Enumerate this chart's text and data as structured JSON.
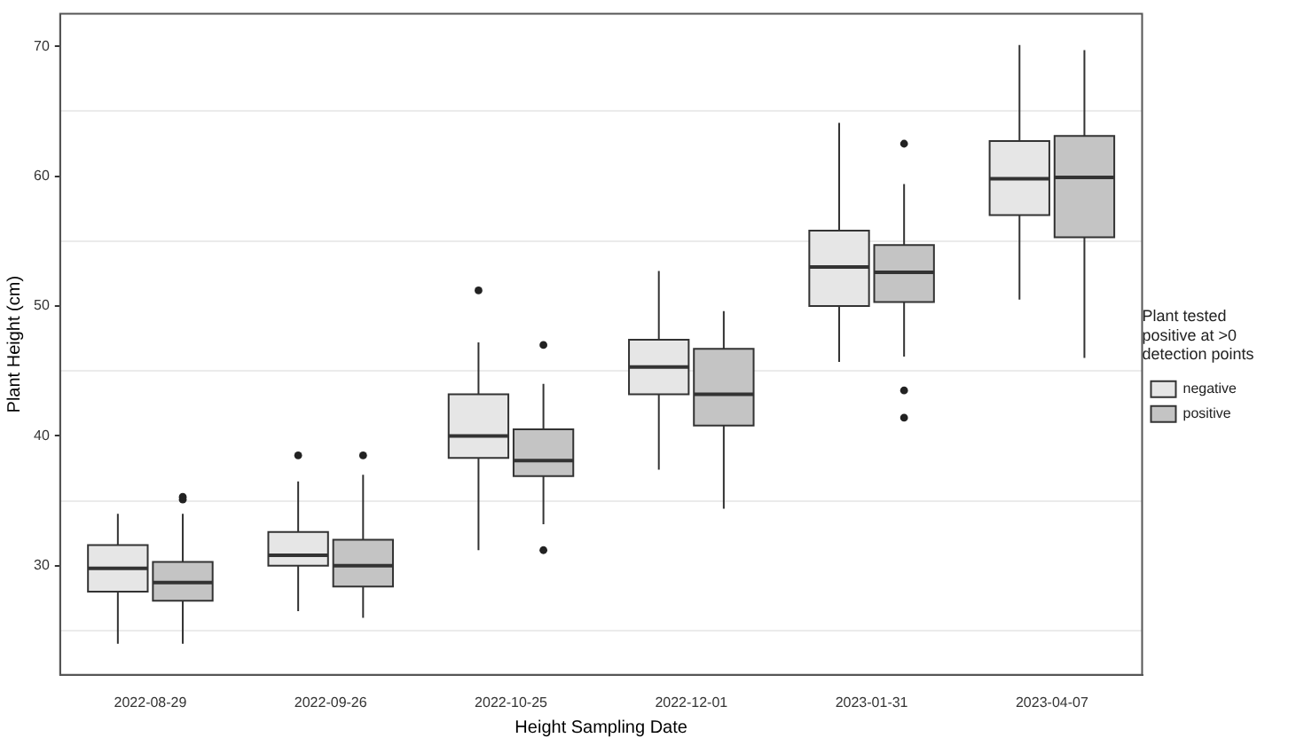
{
  "chart_data": {
    "type": "box",
    "xlabel": "Height Sampling Date",
    "ylabel": "Plant Height (cm)",
    "legend_title": "Plant tested positive at >0 detection points",
    "legend": "right",
    "grid": "y",
    "categories": [
      "2022-08-29",
      "2022-09-26",
      "2022-10-25",
      "2022-12-01",
      "2023-01-31",
      "2023-04-07"
    ],
    "ylim": [
      21.6,
      72.5
    ],
    "yticks": [
      {
        "value": 25,
        "label": null
      },
      30,
      {
        "value": 35,
        "label": null
      },
      40,
      {
        "value": 45,
        "label": null
      },
      50,
      {
        "value": 55,
        "label": null
      },
      60,
      {
        "value": 65,
        "label": null
      },
      70
    ],
    "series": [
      {
        "name": "negative",
        "color": "#e6e6e6",
        "boxes": [
          {
            "low": 24.0,
            "q1": 28.0,
            "median": 29.8,
            "q3": 31.6,
            "high": 34.0
          },
          {
            "low": 26.5,
            "q1": 30.0,
            "median": 30.8,
            "q3": 32.6,
            "high": 36.5,
            "outliers": [
              38.5
            ]
          },
          {
            "low": 31.2,
            "q1": 38.3,
            "median": 40.0,
            "q3": 43.2,
            "high": 47.2,
            "outliers": [
              51.2
            ]
          },
          {
            "low": 37.4,
            "q1": 43.2,
            "median": 45.3,
            "q3": 47.4,
            "high": 52.7
          },
          {
            "low": 45.7,
            "q1": 50.0,
            "median": 53.0,
            "q3": 55.8,
            "high": 64.1
          },
          {
            "low": 50.5,
            "q1": 57.0,
            "median": 59.8,
            "q3": 62.7,
            "high": 70.1
          }
        ]
      },
      {
        "name": "positive",
        "color": "#c4c4c4",
        "boxes": [
          {
            "low": 24.0,
            "q1": 27.3,
            "median": 28.7,
            "q3": 30.3,
            "high": 34.0,
            "outliers": [
              35.1,
              35.3
            ]
          },
          {
            "low": 26.0,
            "q1": 28.4,
            "median": 30.0,
            "q3": 32.0,
            "high": 37.0,
            "outliers": [
              38.5
            ]
          },
          {
            "low": 33.2,
            "q1": 36.9,
            "median": 38.1,
            "q3": 40.5,
            "high": 44.0,
            "outliers": [
              47.0,
              31.2
            ]
          },
          {
            "low": 34.4,
            "q1": 40.8,
            "median": 43.2,
            "q3": 46.7,
            "high": 49.6
          },
          {
            "low": 46.1,
            "q1": 50.3,
            "median": 52.6,
            "q3": 54.7,
            "high": 59.4,
            "outliers": [
              62.5,
              43.5,
              41.4
            ]
          },
          {
            "low": 46.0,
            "q1": 55.3,
            "median": 59.9,
            "q3": 63.1,
            "high": 69.7
          }
        ]
      }
    ]
  }
}
